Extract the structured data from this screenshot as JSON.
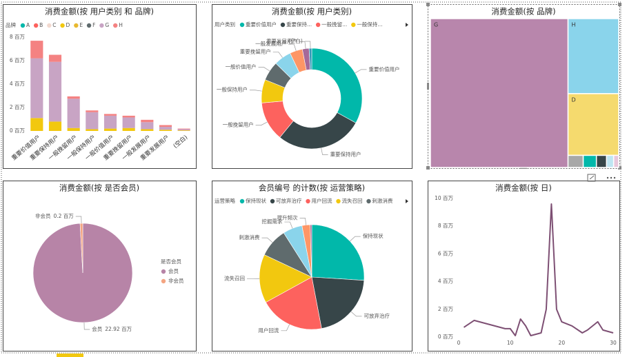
{
  "chart_data": [
    {
      "type": "stacked_bar",
      "title": "消费金额(按 用户类别 和 品牌)",
      "legend_title": "品牌",
      "categories": [
        "重要价值用户",
        "重要保持用户",
        "一般挽留用户",
        "一般保持用户",
        "一般价值用户",
        "重要挽留用户",
        "一般发展用户",
        "重要发展用户",
        "(空白)"
      ],
      "series": [
        {
          "name": "A",
          "color": "#01B8AA",
          "values": [
            0,
            0,
            0,
            0,
            0,
            0,
            0,
            0,
            0
          ]
        },
        {
          "name": "B",
          "color": "#FD625E",
          "values": [
            0,
            0,
            0,
            0,
            0,
            0,
            0,
            0,
            0
          ]
        },
        {
          "name": "C",
          "color": "#F2D9CF",
          "values": [
            0,
            0,
            0,
            0,
            0,
            0,
            0,
            0,
            0
          ]
        },
        {
          "name": "D",
          "color": "#F2C80F",
          "values": [
            1.1,
            0.8,
            0.25,
            0.15,
            0.2,
            0.25,
            0.15,
            0.1,
            0.05
          ]
        },
        {
          "name": "E",
          "color": "#E8B930",
          "values": [
            0,
            0,
            0,
            0,
            0,
            0,
            0,
            0,
            0
          ]
        },
        {
          "name": "F",
          "color": "#5F6B6D",
          "values": [
            0,
            0,
            0,
            0,
            0,
            0,
            0,
            0,
            0
          ]
        },
        {
          "name": "G",
          "color": "#C8A4C4",
          "values": [
            5.1,
            5.1,
            2.5,
            1.45,
            1.1,
            0.9,
            0.6,
            0.25,
            0.1
          ]
        },
        {
          "name": "H",
          "color": "#F48282",
          "values": [
            1.5,
            0.6,
            0.2,
            0.15,
            0.15,
            0.15,
            0.2,
            0.15,
            0.05
          ]
        }
      ],
      "ylim": [
        0,
        8
      ],
      "yticks": [
        {
          "value": 0,
          "label": "0 百万"
        },
        {
          "value": 2,
          "label": "2 百万"
        },
        {
          "value": 4,
          "label": "4 百万"
        },
        {
          "value": 6,
          "label": "6 百万"
        },
        {
          "value": 8,
          "label": "8 百万"
        }
      ]
    },
    {
      "type": "donut",
      "title": "消费金额(按 用户类别)",
      "legend_title": "用户类别",
      "legend_labels": [
        "重要价值用户",
        "重要保持...",
        "一般挽留...",
        "一般保持..."
      ],
      "categories": [
        "重要价值用户",
        "重要保持用户",
        "一般挽留用户",
        "一般保持用户",
        "一般价值用户",
        "重要挽留用户",
        "一般发展用户",
        "重要发展用户",
        "(空白)"
      ],
      "values": [
        7.7,
        6.5,
        2.95,
        1.75,
        1.45,
        1.3,
        0.95,
        0.5,
        0.2
      ],
      "colors": [
        "#01B8AA",
        "#374649",
        "#FD625E",
        "#F2C80F",
        "#5F6B6D",
        "#8AD4EB",
        "#FE9666",
        "#A66999",
        "#3599B8"
      ]
    },
    {
      "type": "treemap",
      "title": "消费金额(按 品牌)",
      "categories": [
        "G",
        "H",
        "D",
        null,
        null,
        null,
        null,
        null
      ],
      "values": [
        16.7,
        3.1,
        2.55,
        0.15,
        0.13,
        0.1,
        0.07,
        0.05
      ],
      "colors": [
        "#B886AC",
        "#8AD4EB",
        "#F5DA6E",
        "#A8A8A8",
        "#01B8AA",
        "#374649",
        "#BFE6F2",
        "#E8C7DB"
      ]
    },
    {
      "type": "pie",
      "title": "消费金额(按 是否会员)",
      "legend_title": "是否会员",
      "legend_labels": [
        "会员",
        "非会员"
      ],
      "categories": [
        "会员",
        "非会员"
      ],
      "values": [
        22.92,
        0.2
      ],
      "value_labels": [
        "22.92 百万",
        "0.2 百万"
      ],
      "colors": [
        "#B784A7",
        "#F4A582"
      ]
    },
    {
      "type": "pie",
      "title": "会员编号 的计数(按 运营策略)",
      "legend_title": "运营策略",
      "legend_labels": [
        "保持现状",
        "可放弃治疗",
        "用户回流",
        "流失召回",
        "刺激消费"
      ],
      "categories": [
        "保持现状",
        "可放弃治疗",
        "用户回流",
        "流失召回",
        "刺激消费",
        "挖掘需求",
        "提升频次",
        null
      ],
      "values": [
        26,
        21,
        20,
        15,
        9,
        6,
        2.5,
        0.5
      ],
      "colors": [
        "#01B8AA",
        "#374649",
        "#FD625E",
        "#F2C80F",
        "#5F6B6D",
        "#8AD4EB",
        "#FE9666",
        "#A66999"
      ]
    },
    {
      "type": "line",
      "title": "消费金额(按 日)",
      "color": "#7D4F73",
      "x": [
        1,
        3,
        5,
        7,
        9,
        10,
        11,
        12,
        13,
        14,
        15,
        16,
        17,
        18,
        19,
        20,
        22,
        24,
        25,
        27,
        28,
        30
      ],
      "values": [
        0.7,
        1.2,
        1.0,
        0.8,
        0.6,
        0.6,
        0.1,
        1.3,
        0.8,
        0.1,
        0.2,
        0.3,
        2.0,
        9.6,
        2.0,
        1.1,
        0.8,
        0.3,
        0.5,
        1.1,
        0.5,
        0.3
      ],
      "xlim": [
        0,
        30
      ],
      "xticks": [
        0,
        10,
        20,
        30
      ],
      "ylim": [
        0,
        10
      ],
      "yticks": [
        {
          "value": 0,
          "label": "0 百万"
        },
        {
          "value": 2,
          "label": "2 百万"
        },
        {
          "value": 4,
          "label": "4 百万"
        },
        {
          "value": 6,
          "label": "6 百万"
        },
        {
          "value": 8,
          "label": "8 百万"
        },
        {
          "value": 10,
          "label": "10 百万"
        }
      ]
    }
  ]
}
